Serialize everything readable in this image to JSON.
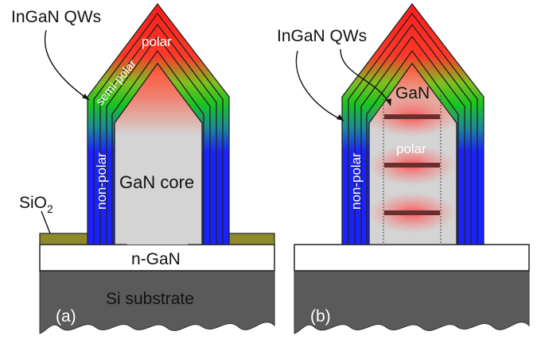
{
  "panels": {
    "a": {
      "tag": "(a)",
      "labels": {
        "qws": "InGaN QWs",
        "polar": "polar",
        "semi_polar": "semi-polar",
        "non_polar": "non-polar",
        "core": "GaN core",
        "mask": "SiO",
        "mask_sub": "2",
        "buffer": "n-GaN",
        "substrate": "Si substrate"
      }
    },
    "b": {
      "tag": "(b)",
      "labels": {
        "qws": "InGaN QWs",
        "gan": "GaN",
        "polar": "polar",
        "non_polar": "non-polar"
      }
    }
  },
  "colors": {
    "polar_red": "#ff2020",
    "semipolar_green": "#20c020",
    "nonpolar_blue": "#1a1aff",
    "core_gray": "#d4d4d4",
    "mask_olive": "#8c8a2a",
    "substrate_gray": "#5a5a5a",
    "disc_brown": "#6b2e2e"
  }
}
